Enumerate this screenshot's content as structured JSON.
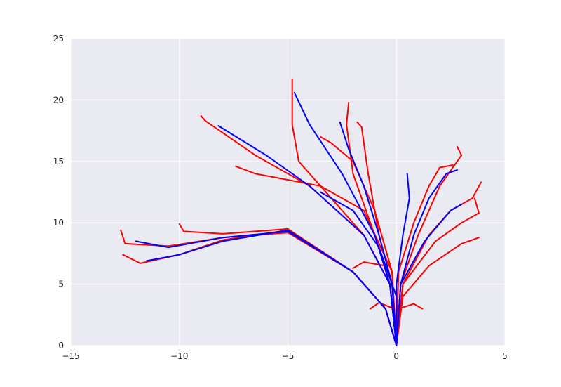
{
  "chart_data": {
    "type": "line",
    "title": "",
    "xlabel": "",
    "ylabel": "",
    "xlim": [
      -15,
      5
    ],
    "ylim": [
      0,
      25
    ],
    "x_ticks": [
      -15,
      -10,
      -5,
      0,
      5
    ],
    "y_ticks": [
      0,
      5,
      10,
      15,
      20,
      25
    ],
    "x_tick_labels": [
      "−15",
      "−10",
      "−5",
      "0",
      "5"
    ],
    "y_tick_labels": [
      "0",
      "5",
      "10",
      "15",
      "20",
      "25"
    ],
    "grid": true,
    "legend": "none",
    "colors": {
      "plot_background": "#eaeaf2",
      "grid": "#ffffff",
      "series_a": "#ff0000",
      "series_b": "#0000ff"
    },
    "series": [
      {
        "color": "#ff0000",
        "paths": [
          [
            [
              0,
              0
            ],
            [
              -0.5,
              3
            ],
            [
              -2,
              6
            ],
            [
              -5,
              9.2
            ],
            [
              -8,
              8.8
            ],
            [
              -10.5,
              8.1
            ],
            [
              -12.5,
              8.3
            ],
            [
              -12.7,
              9.4
            ]
          ],
          [
            [
              0,
              0
            ],
            [
              -0.5,
              3
            ],
            [
              -2,
              6
            ],
            [
              -5,
              9.4
            ],
            [
              -8,
              8.6
            ],
            [
              -10,
              7.4
            ],
            [
              -11.8,
              6.7
            ],
            [
              -12.6,
              7.4
            ]
          ],
          [
            [
              0,
              0
            ],
            [
              -0.5,
              3
            ],
            [
              -2,
              6
            ],
            [
              -5,
              9.5
            ],
            [
              -8,
              9.1
            ],
            [
              -9.8,
              9.3
            ],
            [
              -10,
              9.9
            ]
          ],
          [
            [
              0,
              0
            ],
            [
              -0.3,
              5
            ],
            [
              -1.5,
              9
            ],
            [
              -3,
              12
            ],
            [
              -4.5,
              15
            ],
            [
              -4.8,
              18
            ],
            [
              -4.8,
              21.7
            ]
          ],
          [
            [
              0,
              0
            ],
            [
              -0.3,
              5
            ],
            [
              -1.5,
              9
            ],
            [
              -4,
              13
            ],
            [
              -6.5,
              15.5
            ],
            [
              -8.8,
              18.3
            ],
            [
              -9,
              18.7
            ]
          ],
          [
            [
              0,
              0
            ],
            [
              -0.3,
              5
            ],
            [
              -1,
              9
            ],
            [
              -2,
              14
            ],
            [
              -2.3,
              18
            ],
            [
              -2.2,
              19.8
            ]
          ],
          [
            [
              0,
              0
            ],
            [
              -0.2,
              5
            ],
            [
              -0.8,
              9
            ],
            [
              -1.3,
              14
            ],
            [
              -1.6,
              17.8
            ],
            [
              -1.8,
              18.2
            ]
          ],
          [
            [
              0,
              0
            ],
            [
              0.2,
              5
            ],
            [
              1,
              9
            ],
            [
              2,
              13
            ],
            [
              3,
              15.5
            ],
            [
              2.8,
              16.2
            ]
          ],
          [
            [
              0,
              0
            ],
            [
              0.3,
              5
            ],
            [
              1.5,
              9
            ],
            [
              2.5,
              11
            ],
            [
              3.5,
              12
            ],
            [
              3.9,
              13.3
            ]
          ],
          [
            [
              0,
              0
            ],
            [
              0.3,
              5
            ],
            [
              1.8,
              8.5
            ],
            [
              3,
              10
            ],
            [
              3.8,
              10.8
            ],
            [
              3.6,
              12
            ]
          ],
          [
            [
              0,
              0
            ],
            [
              0.3,
              4
            ],
            [
              1.5,
              6.5
            ],
            [
              3,
              8.3
            ],
            [
              3.8,
              8.8
            ]
          ],
          [
            [
              0,
              0
            ],
            [
              0,
              4
            ],
            [
              -0.5,
              6.5
            ],
            [
              -1.5,
              6.8
            ],
            [
              -2,
              6.3
            ]
          ],
          [
            [
              0,
              0
            ],
            [
              -0.1,
              3
            ],
            [
              -0.8,
              3.5
            ],
            [
              -1.2,
              3
            ]
          ],
          [
            [
              0,
              0
            ],
            [
              0.1,
              3
            ],
            [
              0.8,
              3.4
            ],
            [
              1.2,
              3
            ]
          ],
          [
            [
              0,
              0
            ],
            [
              -0.2,
              6
            ],
            [
              -1.5,
              11
            ],
            [
              -3.5,
              13
            ],
            [
              -6.5,
              14
            ],
            [
              -7.4,
              14.6
            ]
          ],
          [
            [
              0,
              0
            ],
            [
              -0.2,
              6
            ],
            [
              -1,
              11
            ],
            [
              -2,
              15
            ],
            [
              -3,
              16.5
            ],
            [
              -3.5,
              17
            ]
          ],
          [
            [
              0,
              0
            ],
            [
              0.1,
              6
            ],
            [
              0.8,
              10
            ],
            [
              1.5,
              13
            ],
            [
              2,
              14.5
            ],
            [
              2.6,
              14.7
            ]
          ]
        ]
      },
      {
        "color": "#0000ff",
        "paths": [
          [
            [
              0,
              0
            ],
            [
              -0.5,
              3
            ],
            [
              -2,
              6
            ],
            [
              -5,
              9.3
            ],
            [
              -8,
              8.8
            ],
            [
              -10.5,
              8
            ],
            [
              -12,
              8.5
            ]
          ],
          [
            [
              0,
              0
            ],
            [
              -0.5,
              3
            ],
            [
              -2,
              6
            ],
            [
              -5,
              9.4
            ],
            [
              -8,
              8.5
            ],
            [
              -10,
              7.4
            ],
            [
              -11.5,
              6.9
            ]
          ],
          [
            [
              0,
              0
            ],
            [
              -0.3,
              5
            ],
            [
              -1.5,
              9
            ],
            [
              -4,
              13
            ],
            [
              -6,
              15.5
            ],
            [
              -8.2,
              17.9
            ]
          ],
          [
            [
              0,
              0
            ],
            [
              -0.3,
              5
            ],
            [
              -1,
              9
            ],
            [
              -2.5,
              14
            ],
            [
              -4,
              18
            ],
            [
              -4.7,
              20.6
            ]
          ],
          [
            [
              0,
              0
            ],
            [
              -0.2,
              5
            ],
            [
              -0.8,
              9
            ],
            [
              -1.5,
              13
            ],
            [
              -2.2,
              16
            ],
            [
              -2.6,
              18.2
            ]
          ],
          [
            [
              0,
              0
            ],
            [
              0.2,
              5
            ],
            [
              0.8,
              9
            ],
            [
              1.5,
              12
            ],
            [
              2.3,
              14
            ],
            [
              2.8,
              14.3
            ]
          ],
          [
            [
              0,
              0
            ],
            [
              0.2,
              5
            ],
            [
              1.3,
              8.5
            ],
            [
              2.5,
              11
            ],
            [
              3,
              11.5
            ]
          ],
          [
            [
              0,
              0
            ],
            [
              0,
              4
            ],
            [
              -0.8,
              8
            ],
            [
              -2,
              11
            ],
            [
              -3.5,
              12.5
            ]
          ],
          [
            [
              0,
              0
            ],
            [
              0,
              5
            ],
            [
              0.3,
              9
            ],
            [
              0.6,
              12
            ],
            [
              0.5,
              14
            ]
          ]
        ]
      }
    ]
  }
}
